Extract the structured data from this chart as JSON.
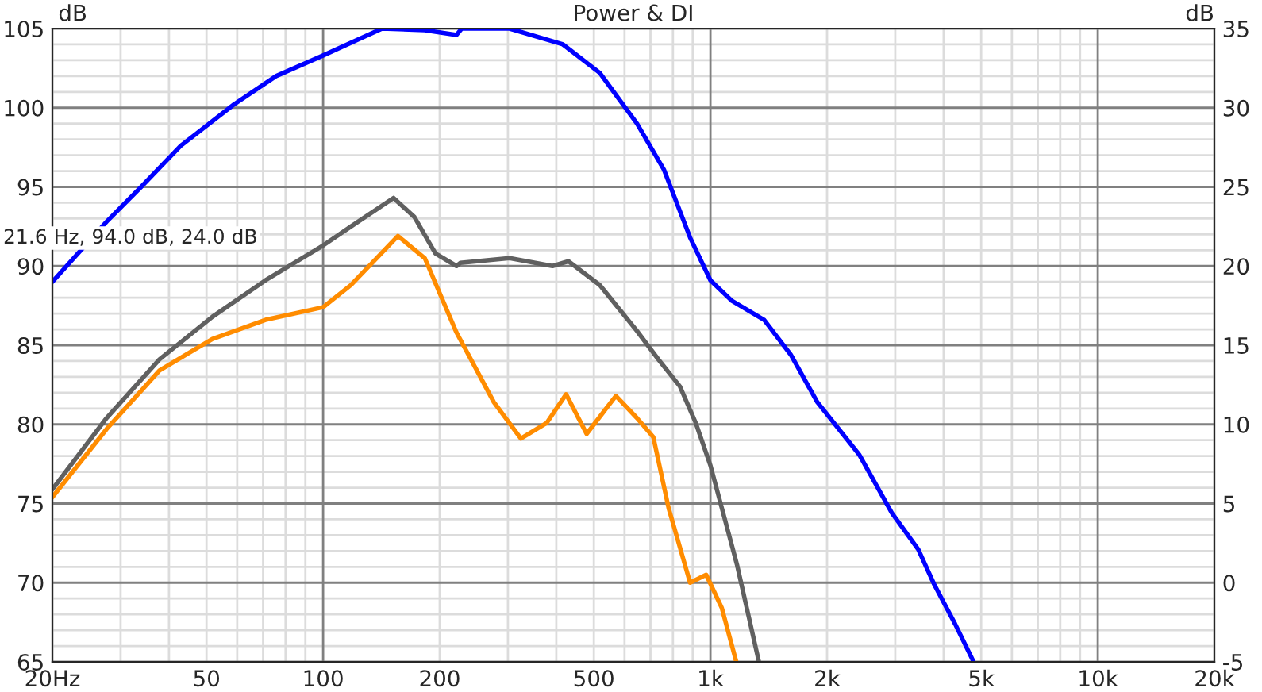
{
  "chart_data": {
    "type": "line",
    "title": "Power & DI",
    "ylabel": "dB",
    "y2label": "dB",
    "annotations": [
      "21.6 Hz, 94.0 dB, 24.0 dB"
    ],
    "log": "x",
    "grid": true,
    "marker": "none",
    "line_style": "solid",
    "xlim": [
      20,
      20000
    ],
    "xticks": [
      {
        "value": 20,
        "label": "20Hz"
      },
      50,
      100,
      200,
      500,
      {
        "value": 1000,
        "label": "1k"
      },
      {
        "value": 2000,
        "label": "2k"
      },
      {
        "value": 5000,
        "label": "5k"
      },
      {
        "value": 10000,
        "label": "10k"
      },
      {
        "value": 20000,
        "label": "20k"
      }
    ],
    "ylim": [
      65,
      105
    ],
    "yticks": [
      65,
      70,
      75,
      80,
      85,
      90,
      95,
      100,
      105
    ],
    "y2lim": [
      -5,
      35
    ],
    "y2ticks": [
      -5,
      0,
      5,
      10,
      15,
      20,
      25,
      30,
      35
    ],
    "series": [
      {
        "color": "#0000ff",
        "x": [
          20,
          27.6,
          33.9,
          42.9,
          58.8,
          75.6,
          100,
          142,
          183,
          221,
          228,
          303,
          416,
          518,
          646,
          758,
          886,
          1000,
          1137,
          1376,
          1612,
          1888,
          2420,
          2940,
          3440,
          3780,
          4280,
          4780
        ],
        "values": [
          89.0,
          92.8,
          95.0,
          97.6,
          100.2,
          102.0,
          103.3,
          105,
          104.9,
          104.6,
          105,
          105,
          104.0,
          102.2,
          99.0,
          96.1,
          91.8,
          89.1,
          87.8,
          86.6,
          84.4,
          81.4,
          78.1,
          74.4,
          72.1,
          69.9,
          67.4,
          65.0
        ]
      },
      {
        "color": "#606060",
        "x": [
          20,
          27.6,
          37.8,
          51.8,
          71,
          100,
          118,
          152,
          172,
          195,
          221,
          226,
          303,
          391,
          430,
          518,
          646,
          734,
          834,
          916,
          1000,
          1172,
          1334
        ],
        "values": [
          75.9,
          80.4,
          84.1,
          86.8,
          89.1,
          91.3,
          92.5,
          94.3,
          93.1,
          90.8,
          90.0,
          90.2,
          90.5,
          90.0,
          90.3,
          88.8,
          85.9,
          84.1,
          82.4,
          80.1,
          77.4,
          71.1,
          65.0
        ]
      },
      {
        "color": "#ff8c00",
        "x": [
          20,
          27.6,
          37.8,
          51.8,
          71,
          100,
          118,
          156,
          183,
          221,
          276,
          324,
          378,
          424,
          479,
          570,
          646,
          712,
          780,
          886,
          975,
          1070,
          1166
        ],
        "values": [
          75.4,
          79.7,
          83.4,
          85.4,
          86.6,
          87.4,
          88.8,
          91.9,
          90.5,
          85.8,
          81.4,
          79.1,
          80.1,
          81.9,
          79.4,
          81.8,
          80.4,
          79.2,
          74.7,
          70.0,
          70.5,
          68.4,
          65.0
        ]
      }
    ]
  }
}
